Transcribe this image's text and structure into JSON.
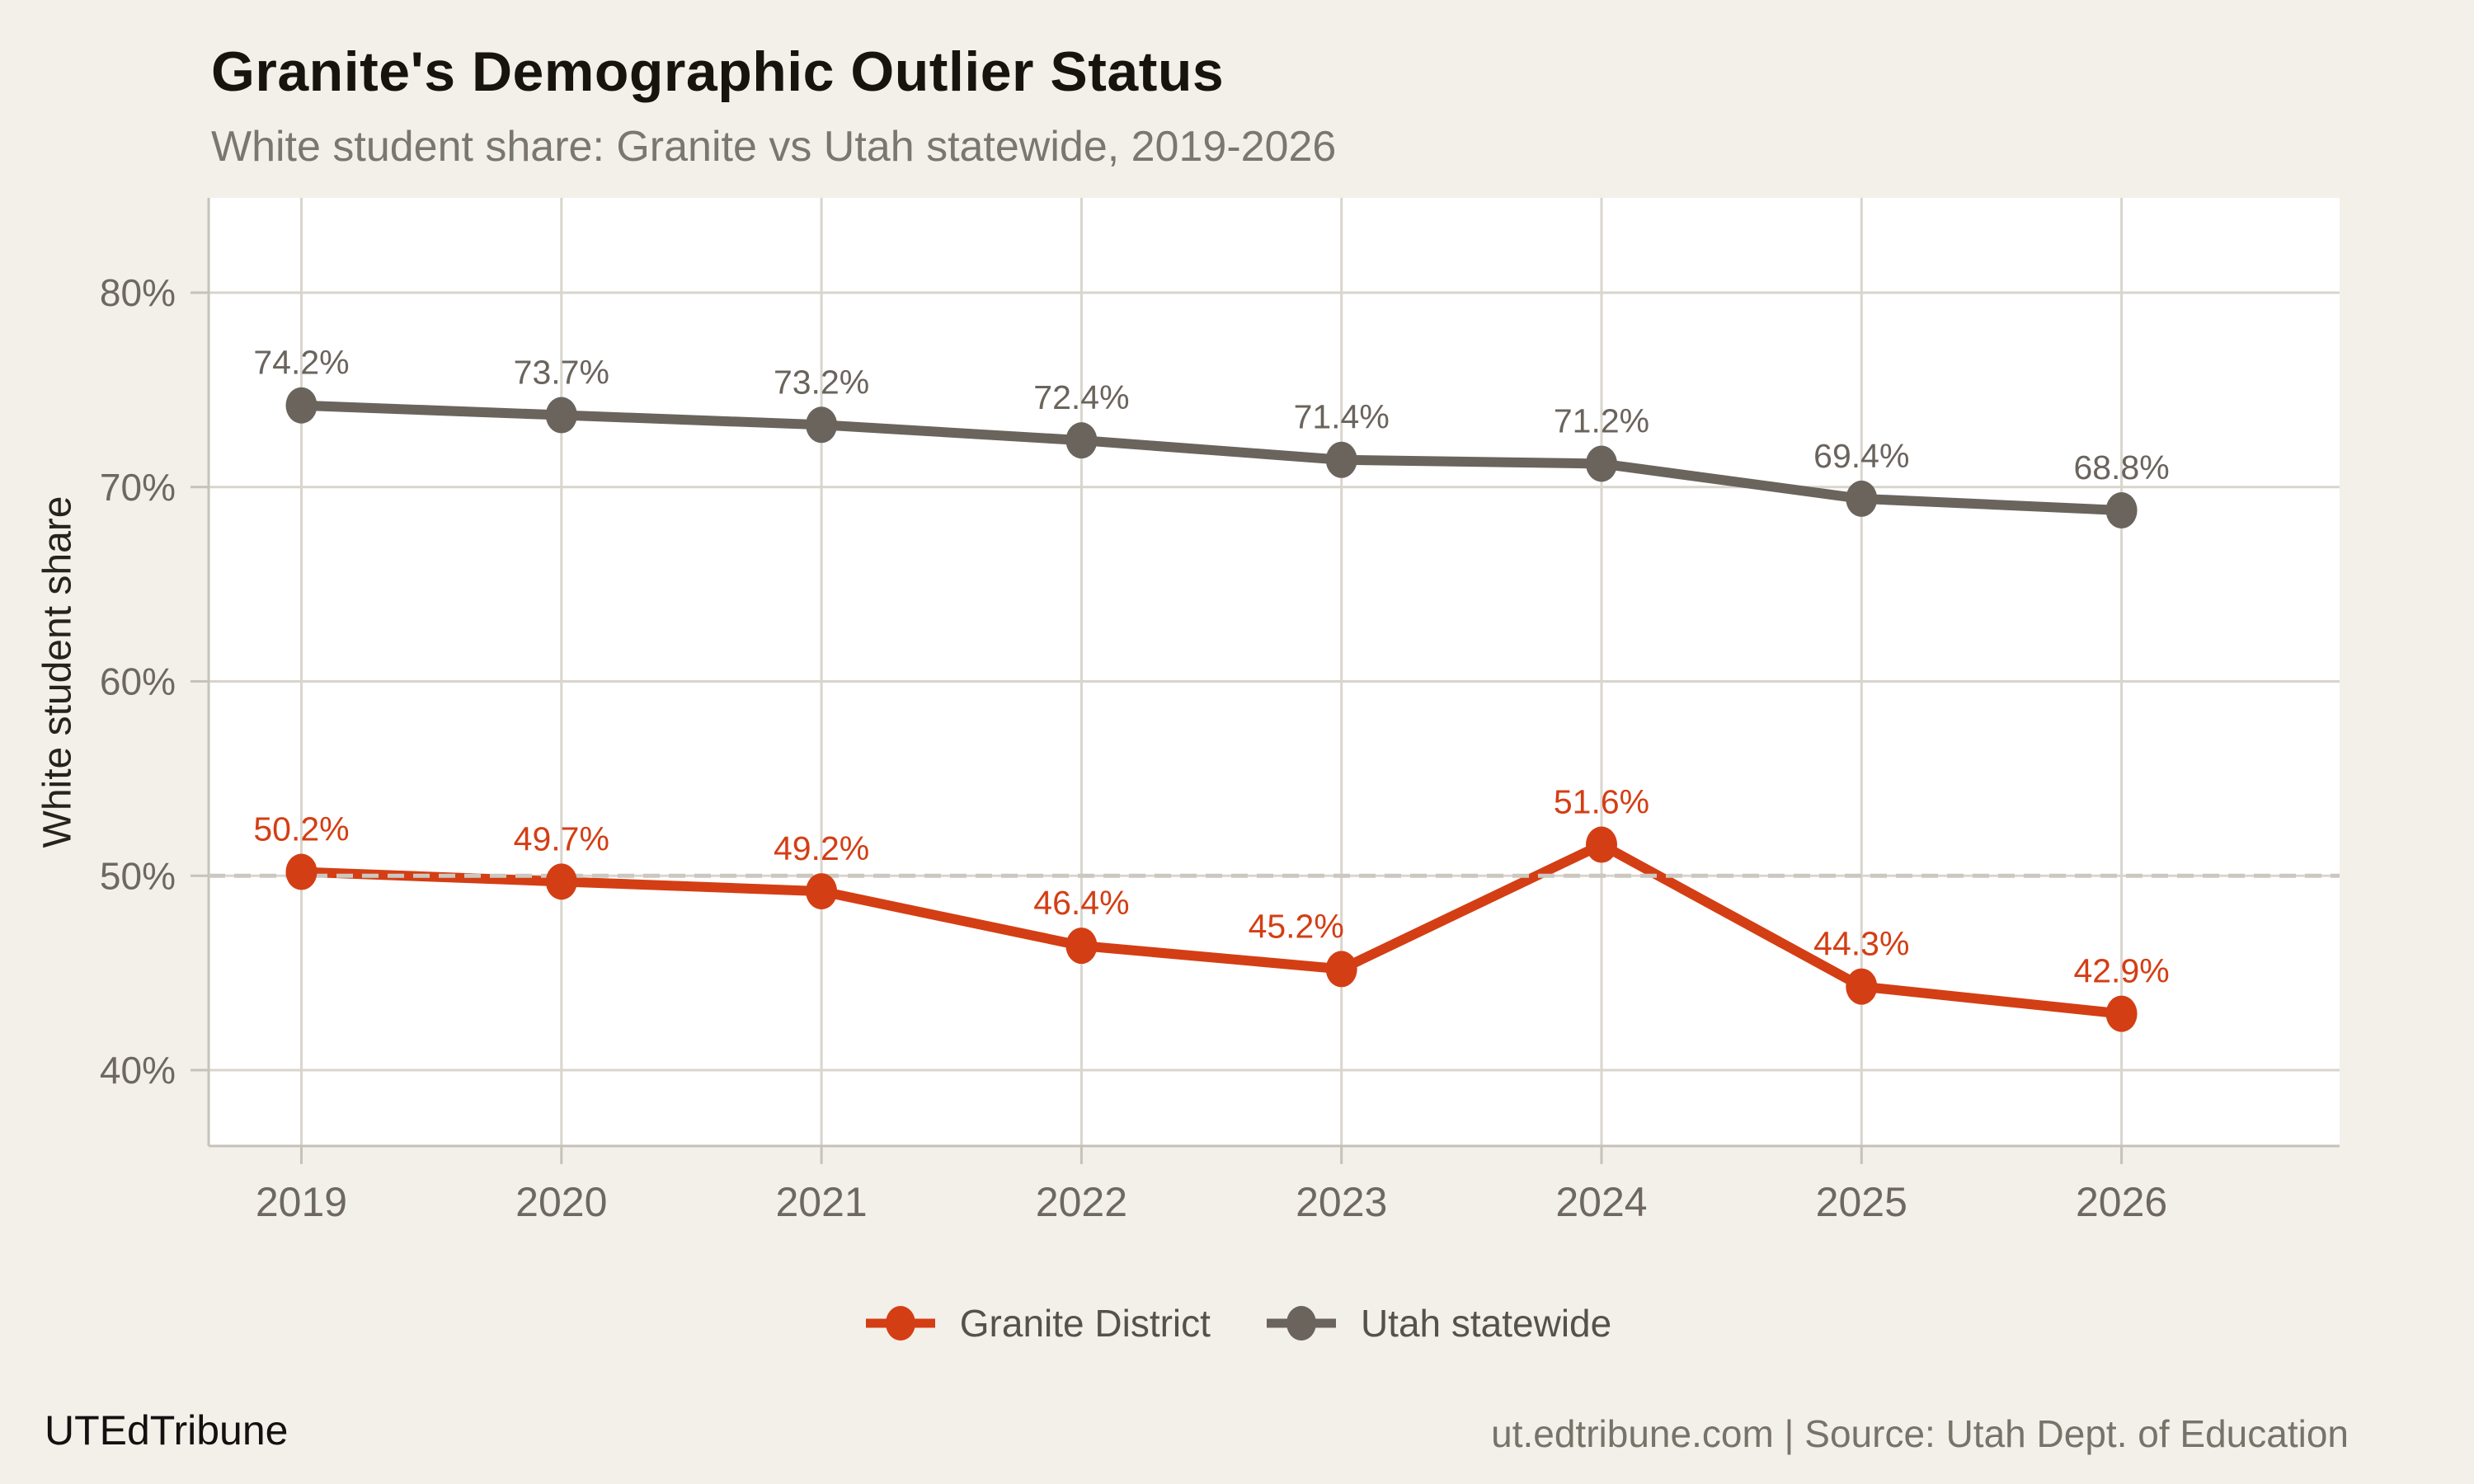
{
  "header": {
    "title": "Granite's Demographic Outlier Status",
    "subtitle": "White student share: Granite vs Utah statewide, 2019-2026"
  },
  "chart_data": {
    "type": "line",
    "x": [
      "2019",
      "2020",
      "2021",
      "2022",
      "2023",
      "2024",
      "2025",
      "2026"
    ],
    "series": [
      {
        "name": "Granite District",
        "color": "#d43e14",
        "values": [
          50.2,
          49.7,
          49.2,
          46.4,
          45.2,
          51.6,
          44.3,
          42.9
        ],
        "point_labels": [
          "50.2%",
          "49.7%",
          "49.2%",
          "46.4%",
          "45.2%",
          "51.6%",
          "44.3%",
          "42.9%"
        ],
        "label_dx": [
          0,
          0,
          0,
          0,
          -55,
          0,
          0,
          0
        ]
      },
      {
        "name": "Utah statewide",
        "color": "#6a645d",
        "values": [
          74.2,
          73.7,
          73.2,
          72.4,
          71.4,
          71.2,
          69.4,
          68.8
        ],
        "point_labels": [
          "74.2%",
          "73.7%",
          "73.2%",
          "72.4%",
          "71.4%",
          "71.2%",
          "69.4%",
          "68.8%"
        ],
        "label_dx": [
          0,
          0,
          0,
          0,
          0,
          0,
          0,
          0
        ]
      }
    ],
    "title": "Granite's Demographic Outlier Status",
    "subtitle": "White student share: Granite vs Utah statewide, 2019-2026",
    "xlabel": "",
    "ylabel": "White student share",
    "yticks": [
      40,
      50,
      60,
      70,
      80
    ],
    "ytick_labels": [
      "40%",
      "50%",
      "60%",
      "70%",
      "80%"
    ],
    "ylim": [
      36.1,
      84.9
    ],
    "reference_line_y": 50,
    "grid": true,
    "legend_position": "bottom-center",
    "colors": {
      "background": "#f3f0ea",
      "panel": "#ffffff",
      "gridline": "#d9d5cd",
      "axis_line": "#c6c2ba",
      "reference_dash": "#ccc8c0",
      "tick_label": "#6e6861",
      "data_label_gray": "#6b6560",
      "data_label_red": "#d43e14"
    }
  },
  "footer": {
    "brand": "UTEdTribune",
    "attribution": "ut.edtribune.com | Source: Utah Dept. of Education"
  }
}
